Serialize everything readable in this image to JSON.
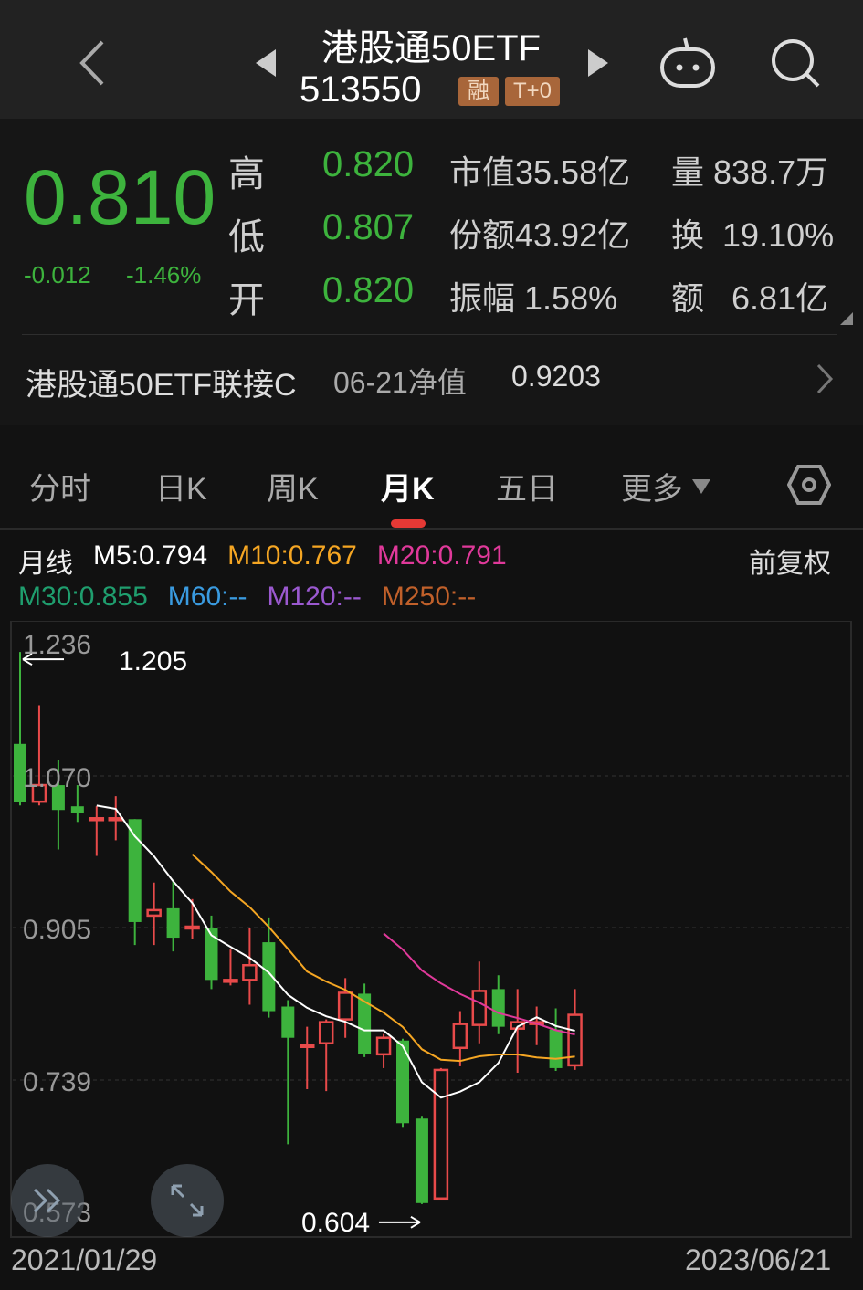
{
  "header": {
    "name": "港股通50ETF",
    "code": "513550",
    "badges": [
      "融",
      "T+0"
    ],
    "icons": [
      "back-icon",
      "prev-icon",
      "next-icon",
      "robot-icon",
      "search-icon"
    ]
  },
  "quote": {
    "price": "0.810",
    "change": "-0.012",
    "change_pct": "-1.46%",
    "fields": [
      {
        "label": "高",
        "value": "0.820"
      },
      {
        "label": "低",
        "value": "0.807"
      },
      {
        "label": "开",
        "value": "0.820"
      }
    ],
    "stats": [
      {
        "label": "市值",
        "value": "35.58亿"
      },
      {
        "label": "份额",
        "value": "43.92亿"
      },
      {
        "label": "振幅",
        "value": "1.58%"
      }
    ],
    "stats2": [
      {
        "label": "量",
        "value": "838.7万"
      },
      {
        "label": "换",
        "value": "19.10%"
      },
      {
        "label": "额",
        "value": "6.81亿"
      }
    ],
    "color_down": "#3db33d",
    "color_up": "#e84a4a"
  },
  "linked_fund": {
    "name": "港股通50ETF联接C",
    "date_label": "06-21净值",
    "nav": "0.9203"
  },
  "tabs": [
    {
      "label": "分时"
    },
    {
      "label": "日K"
    },
    {
      "label": "周K"
    },
    {
      "label": "月K",
      "active": true
    },
    {
      "label": "五日"
    },
    {
      "label": "更多"
    }
  ],
  "ma_legend": {
    "title": "月线",
    "adjust": "前复权",
    "items": [
      {
        "label": "M5:0.794",
        "color": "#ffffff"
      },
      {
        "label": "M10:0.767",
        "color": "#f5a623"
      },
      {
        "label": "M20:0.791",
        "color": "#e0399a"
      },
      {
        "label": "M30:0.855",
        "color": "#1f9e6e"
      },
      {
        "label": "M60:--",
        "color": "#3a9be0"
      },
      {
        "label": "M120:--",
        "color": "#9b59d0"
      },
      {
        "label": "M250:--",
        "color": "#c0602a"
      }
    ]
  },
  "chart_data": {
    "type": "candlestick",
    "yticks": [
      "1.236",
      "1.070",
      "0.905",
      "0.739",
      "0.573"
    ],
    "ylim": [
      0.573,
      1.236
    ],
    "x_start": "2021/01/29",
    "x_end": "2023/06/21",
    "max_label": "1.205",
    "min_label": "0.604",
    "ohlc": [
      [
        1.105,
        1.205,
        1.038,
        1.042
      ],
      [
        1.042,
        1.147,
        1.038,
        1.06
      ],
      [
        1.06,
        1.087,
        0.99,
        1.033
      ],
      [
        1.037,
        1.06,
        1.02,
        1.03
      ],
      [
        1.024,
        1.037,
        0.983,
        1.024
      ],
      [
        1.024,
        1.048,
        1.0,
        1.024
      ],
      [
        1.023,
        1.023,
        0.886,
        0.911
      ],
      [
        0.918,
        0.954,
        0.886,
        0.924
      ],
      [
        0.926,
        0.956,
        0.879,
        0.894
      ],
      [
        0.906,
        0.936,
        0.893,
        0.906
      ],
      [
        0.904,
        0.918,
        0.838,
        0.848
      ],
      [
        0.848,
        0.881,
        0.842,
        0.848
      ],
      [
        0.848,
        0.904,
        0.821,
        0.864
      ],
      [
        0.889,
        0.916,
        0.807,
        0.814
      ],
      [
        0.819,
        0.826,
        0.669,
        0.785
      ],
      [
        0.777,
        0.797,
        0.729,
        0.777
      ],
      [
        0.779,
        0.805,
        0.727,
        0.802
      ],
      [
        0.805,
        0.85,
        0.785,
        0.834
      ],
      [
        0.833,
        0.844,
        0.764,
        0.767
      ],
      [
        0.767,
        0.789,
        0.752,
        0.785
      ],
      [
        0.782,
        0.784,
        0.687,
        0.692
      ],
      [
        0.697,
        0.7,
        0.604,
        0.605
      ],
      [
        0.61,
        0.752,
        0.609,
        0.75
      ],
      [
        0.774,
        0.814,
        0.754,
        0.8
      ],
      [
        0.799,
        0.868,
        0.779,
        0.836
      ],
      [
        0.838,
        0.853,
        0.789,
        0.797
      ],
      [
        0.795,
        0.838,
        0.747,
        0.802
      ],
      [
        0.8,
        0.819,
        0.777,
        0.802
      ],
      [
        0.794,
        0.817,
        0.749,
        0.752
      ],
      [
        0.755,
        0.838,
        0.75,
        0.81
      ]
    ],
    "ma_periods": [
      5,
      10,
      20
    ]
  },
  "overlay_buttons": [
    "collapse-icon",
    "expand-icon"
  ]
}
